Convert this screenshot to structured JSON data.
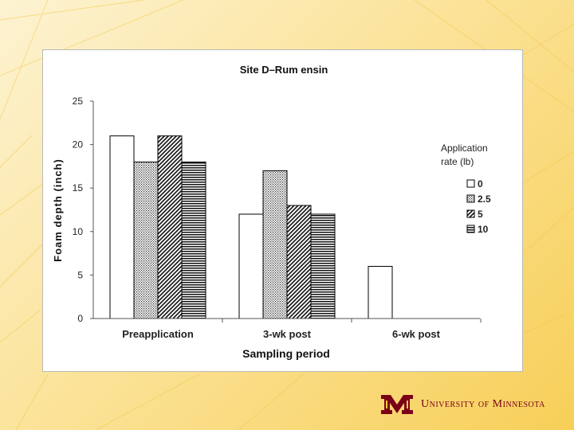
{
  "footer": {
    "university_name": "University of Minnesota"
  },
  "colors": {
    "maroon": "#7a0019",
    "gold": "#ffcc33"
  },
  "chart_data": {
    "type": "bar",
    "title": "Site D–Rum ensin",
    "xlabel": "Sampling period",
    "ylabel": "Foam depth (inch)",
    "ylim": [
      0,
      25
    ],
    "yticks": [
      0,
      5,
      10,
      15,
      20,
      25
    ],
    "categories": [
      "Preapplication",
      "3-wk post",
      "6-wk post"
    ],
    "legend_title_line1": "Application",
    "legend_title_line2": "rate (lb)",
    "series": [
      {
        "name": "0",
        "pattern": "white",
        "values": [
          21,
          12,
          6
        ]
      },
      {
        "name": "2.5",
        "pattern": "dots",
        "values": [
          18,
          17,
          0
        ]
      },
      {
        "name": "5",
        "pattern": "diagonal",
        "values": [
          21,
          13,
          0
        ]
      },
      {
        "name": "10",
        "pattern": "horizontal",
        "values": [
          18,
          12,
          0
        ]
      }
    ]
  }
}
